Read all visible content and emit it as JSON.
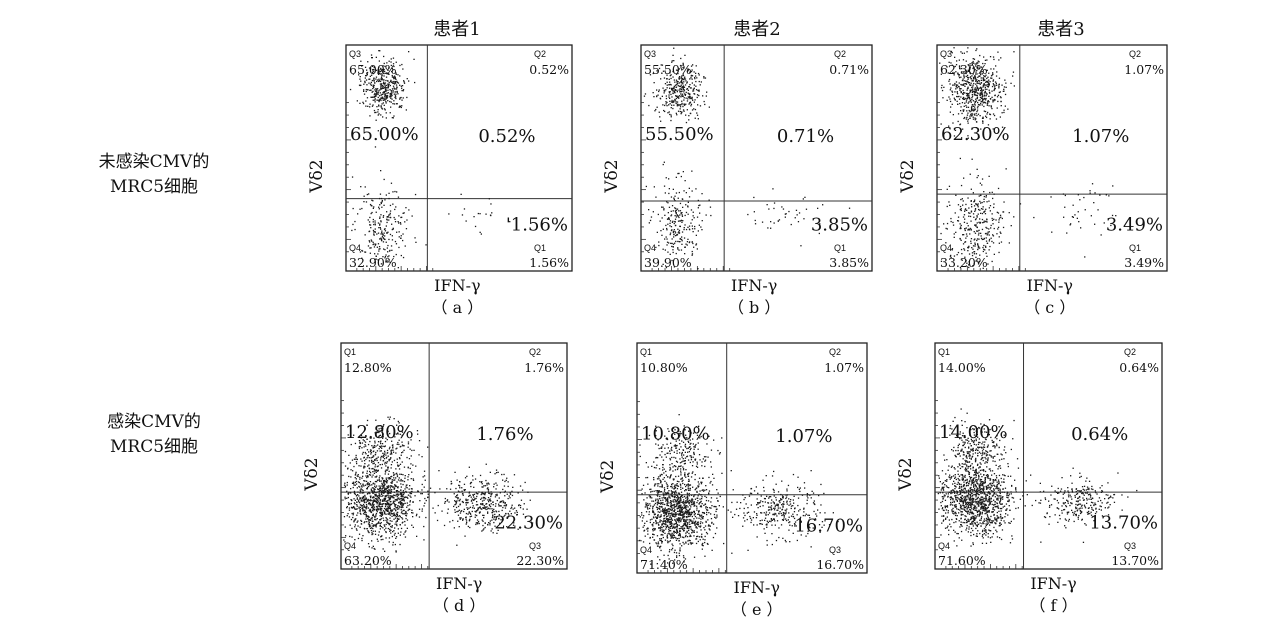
{
  "figure": {
    "column_headers": [
      "患者1",
      "患者2",
      "患者3"
    ],
    "row_labels": [
      [
        "未感染CMV的",
        "MRC5细胞"
      ],
      [
        "感染CMV的",
        "MRC5细胞"
      ]
    ]
  },
  "chart_data": [
    {
      "type": "scatter",
      "panel": "a",
      "caption": "（ a ）",
      "xlabel": "IFN-γ",
      "ylabel": "Vδ2",
      "quadrants": {
        "upper_left": {
          "id": "Q3",
          "value": "65.00%"
        },
        "upper_right": {
          "id": "Q2",
          "value": "0.52%"
        },
        "lower_left": {
          "id": "Q4",
          "value": "32.90%"
        },
        "lower_right": {
          "id": "Q1",
          "value": "1.56%"
        }
      },
      "large_labels": {
        "upper_left": "65.00%",
        "upper_right": "0.52%",
        "lower_right": "'1.56%"
      },
      "populations": [
        {
          "quadrant": "upper_left",
          "level": 0.82,
          "spread_x": 0.05,
          "spread_y": 0.06,
          "count": 420
        },
        {
          "quadrant": "lower_left",
          "level": 0.19,
          "spread_x": 0.06,
          "spread_y": 0.09,
          "count": 240
        },
        {
          "quadrant": "lower_right",
          "level": 0.26,
          "spread_x": 0.08,
          "spread_y": 0.05,
          "count": 18
        }
      ]
    },
    {
      "type": "scatter",
      "panel": "b",
      "caption": "（ b ）",
      "xlabel": "IFN-γ",
      "ylabel": "Vδ2",
      "quadrants": {
        "upper_left": {
          "id": "Q3",
          "value": "55.50%"
        },
        "upper_right": {
          "id": "Q2",
          "value": "0.71%"
        },
        "lower_left": {
          "id": "Q4",
          "value": "39.90%"
        },
        "lower_right": {
          "id": "Q1",
          "value": "3.85%"
        }
      },
      "large_labels": {
        "upper_left": "55.50%",
        "upper_right": "0.71%",
        "lower_right": "3.85%"
      },
      "populations": [
        {
          "quadrant": "upper_left",
          "level": 0.8,
          "spread_x": 0.05,
          "spread_y": 0.06,
          "count": 360
        },
        {
          "quadrant": "lower_left",
          "level": 0.22,
          "spread_x": 0.05,
          "spread_y": 0.09,
          "count": 250
        },
        {
          "quadrant": "lower_right",
          "level": 0.26,
          "spread_x": 0.1,
          "spread_y": 0.05,
          "count": 40
        }
      ]
    },
    {
      "type": "scatter",
      "panel": "c",
      "caption": "（ c ）",
      "xlabel": "IFN-γ",
      "ylabel": "Vδ2",
      "quadrants": {
        "upper_left": {
          "id": "Q3",
          "value": "62.30%"
        },
        "upper_right": {
          "id": "Q2",
          "value": "1.07%"
        },
        "lower_left": {
          "id": "Q4",
          "value": "33.20%"
        },
        "lower_right": {
          "id": "Q1",
          "value": "3.49%"
        }
      },
      "large_labels": {
        "upper_left": "62.30%",
        "upper_right": "1.07%",
        "lower_right": "3.49%"
      },
      "populations": [
        {
          "quadrant": "upper_left",
          "level": 0.8,
          "spread_x": 0.06,
          "spread_y": 0.08,
          "count": 620
        },
        {
          "quadrant": "lower_left",
          "level": 0.2,
          "spread_x": 0.06,
          "spread_y": 0.1,
          "count": 330
        },
        {
          "quadrant": "lower_right",
          "level": 0.28,
          "spread_x": 0.1,
          "spread_y": 0.06,
          "count": 40
        }
      ]
    },
    {
      "type": "scatter",
      "panel": "d",
      "caption": "（ d ）",
      "xlabel": "IFN-γ",
      "ylabel": "Vδ2",
      "quadrants": {
        "upper_left": {
          "id": "Q1",
          "value": "12.80%"
        },
        "upper_right": {
          "id": "Q2",
          "value": "1.76%"
        },
        "lower_left": {
          "id": "Q4",
          "value": "63.20%"
        },
        "lower_right": {
          "id": "Q3",
          "value": "22.30%"
        }
      },
      "large_labels": {
        "upper_left": "12.80%",
        "upper_right": "1.76%",
        "lower_right": "22.30%"
      },
      "populations": [
        {
          "quadrant": "lower_left",
          "level": 0.3,
          "spread_x": 0.08,
          "spread_y": 0.08,
          "count": 1100
        },
        {
          "quadrant": "upper_left",
          "level": 0.53,
          "spread_x": 0.07,
          "spread_y": 0.06,
          "count": 280
        },
        {
          "quadrant": "lower_right",
          "level": 0.29,
          "spread_x": 0.09,
          "spread_y": 0.06,
          "count": 420
        }
      ]
    },
    {
      "type": "scatter",
      "panel": "e",
      "caption": "（ e ）",
      "xlabel": "IFN-γ",
      "ylabel": "Vδ2",
      "quadrants": {
        "upper_left": {
          "id": "Q1",
          "value": "10.80%"
        },
        "upper_right": {
          "id": "Q2",
          "value": "1.07%"
        },
        "lower_left": {
          "id": "Q4",
          "value": "71.40%"
        },
        "lower_right": {
          "id": "Q3",
          "value": "16.70%"
        }
      },
      "large_labels": {
        "upper_left": "10.80%",
        "upper_right": "1.07%",
        "lower_right": "16.70%"
      },
      "populations": [
        {
          "quadrant": "lower_left",
          "level": 0.27,
          "spread_x": 0.08,
          "spread_y": 0.08,
          "count": 1200
        },
        {
          "quadrant": "upper_left",
          "level": 0.52,
          "spread_x": 0.07,
          "spread_y": 0.06,
          "count": 220
        },
        {
          "quadrant": "lower_right",
          "level": 0.28,
          "spread_x": 0.09,
          "spread_y": 0.06,
          "count": 320
        }
      ]
    },
    {
      "type": "scatter",
      "panel": "f",
      "caption": "（ f ）",
      "xlabel": "IFN-γ",
      "ylabel": "Vδ2",
      "quadrants": {
        "upper_left": {
          "id": "Q1",
          "value": "14.00%"
        },
        "upper_right": {
          "id": "Q2",
          "value": "0.64%"
        },
        "lower_left": {
          "id": "Q4",
          "value": "71.60%"
        },
        "lower_right": {
          "id": "Q3",
          "value": "13.70%"
        }
      },
      "large_labels": {
        "upper_left": "14.00%",
        "upper_right": "0.64%",
        "lower_right": "13.70%"
      },
      "populations": [
        {
          "quadrant": "lower_left",
          "level": 0.31,
          "spread_x": 0.08,
          "spread_y": 0.08,
          "count": 1150
        },
        {
          "quadrant": "upper_left",
          "level": 0.53,
          "spread_x": 0.06,
          "spread_y": 0.06,
          "count": 260
        },
        {
          "quadrant": "lower_right",
          "level": 0.3,
          "spread_x": 0.08,
          "spread_y": 0.05,
          "count": 260
        }
      ]
    }
  ]
}
